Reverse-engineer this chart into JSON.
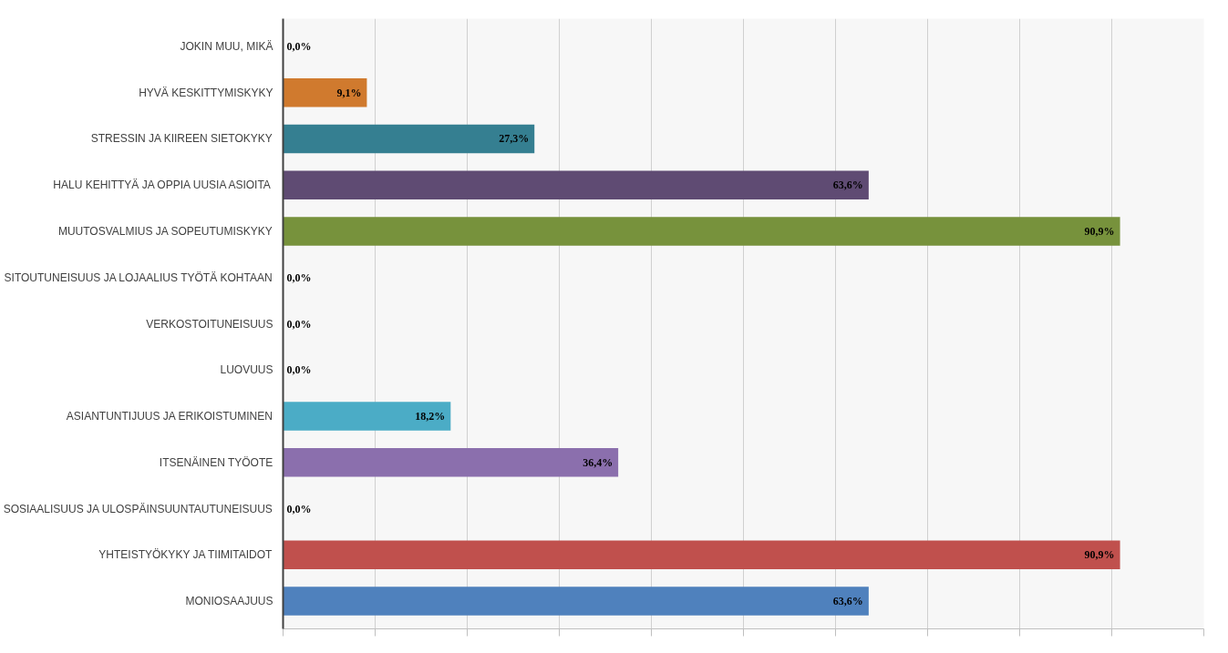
{
  "chart_data": {
    "type": "bar",
    "orientation": "horizontal",
    "categories": [
      "JOKIN MUU, MIKÄ",
      "HYVÄ KESKITTYMISKYKY",
      "STRESSIN JA KIIREEN SIETOKYKY",
      "HALU KEHITTYÄ JA OPPIA UUSIA ASIOITA",
      "MUUTOSVALMIUS JA SOPEUTUMISKYKY",
      "SITOUTUNEISUUS JA LOJAALIUS TYÖTÄ KOHTAAN",
      "VERKOSTOITUNEISUUS",
      "LUOVUUS",
      "ASIANTUNTIJUUS JA ERIKOISTUMINEN",
      "ITSENÄINEN TYÖOTE",
      "SOSIAALISUUS JA ULOSPÄINSUUNTAUTUNEISUUS",
      "YHTEISTYÖKYKY JA TIIMITAIDOT",
      "MONIOSAAJUUS"
    ],
    "values": [
      0,
      9.1,
      27.3,
      63.6,
      90.9,
      0,
      0,
      0,
      18.2,
      36.4,
      0,
      90.9,
      63.6
    ],
    "value_labels": [
      "0,0%",
      "9,1%",
      "27,3%",
      "63,6%",
      "90,9%",
      "0,0%",
      "0,0%",
      "0,0%",
      "18,2%",
      "36,4%",
      "0,0%",
      "90,9%",
      "63,6%"
    ],
    "colors": [
      "#7f7f7f",
      "#d07a2e",
      "#357f91",
      "#5f4b73",
      "#77923c",
      "#7f7f7f",
      "#7f7f7f",
      "#7f7f7f",
      "#4bacc6",
      "#8b6fad",
      "#7f7f7f",
      "#c0504d",
      "#4f81bd"
    ],
    "xlim": [
      0,
      100
    ],
    "xticks": [
      {
        "value": 0,
        "label": null
      },
      {
        "value": 10,
        "label": null
      },
      {
        "value": 20,
        "label": null
      },
      {
        "value": 30,
        "label": null
      },
      {
        "value": 40,
        "label": null
      },
      {
        "value": 50,
        "label": null
      },
      {
        "value": 60,
        "label": null
      },
      {
        "value": 70,
        "label": null
      },
      {
        "value": 80,
        "label": null
      },
      {
        "value": 90,
        "label": null
      },
      {
        "value": 100,
        "label": null
      }
    ],
    "tick_labels": "y",
    "grid": "x"
  }
}
